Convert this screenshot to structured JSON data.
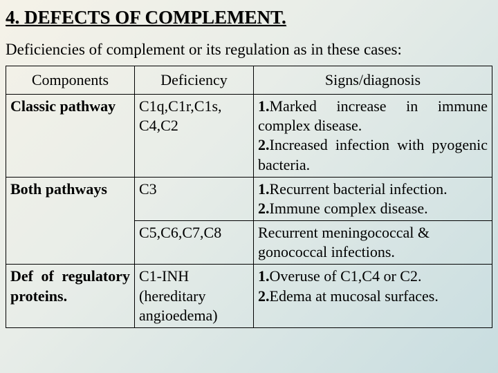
{
  "title": "4. DEFECTS OF COMPLEMENT.",
  "intro": "Deficiencies of complement or its regulation as in these cases:",
  "headers": {
    "components": "Components",
    "deficiency": "Deficiency",
    "signs": "Signs/diagnosis"
  },
  "rows": {
    "r1": {
      "component": "Classic pathway",
      "deficiency": "C1q,C1r,C1s, C4,C2",
      "sig1_label": "1.",
      "sig1_text": "Marked increase in immune complex disease.",
      "sig2_label": "2.",
      "sig2_text": "Increased infection with pyogenic bacteria."
    },
    "r2": {
      "component": "Both pathways",
      "deficiency": "C3",
      "sig1_label": "1.",
      "sig1_text": "Recurrent bacterial infection.",
      "sig2_label": "2.",
      "sig2_text": "Immune complex disease."
    },
    "r3": {
      "deficiency": "C5,C6,C7,C8",
      "signs": "Recurrent meningococcal & gonococcal infections."
    },
    "r4": {
      "component": "Def of regulatory proteins.",
      "deficiency": "C1-INH (hereditary angioedema)",
      "sig1_label": "1.",
      "sig1_text": "Overuse of C1,C4 or C2.",
      "sig2_label": "2.",
      "sig2_text": "Edema at mucosal surfaces."
    }
  }
}
